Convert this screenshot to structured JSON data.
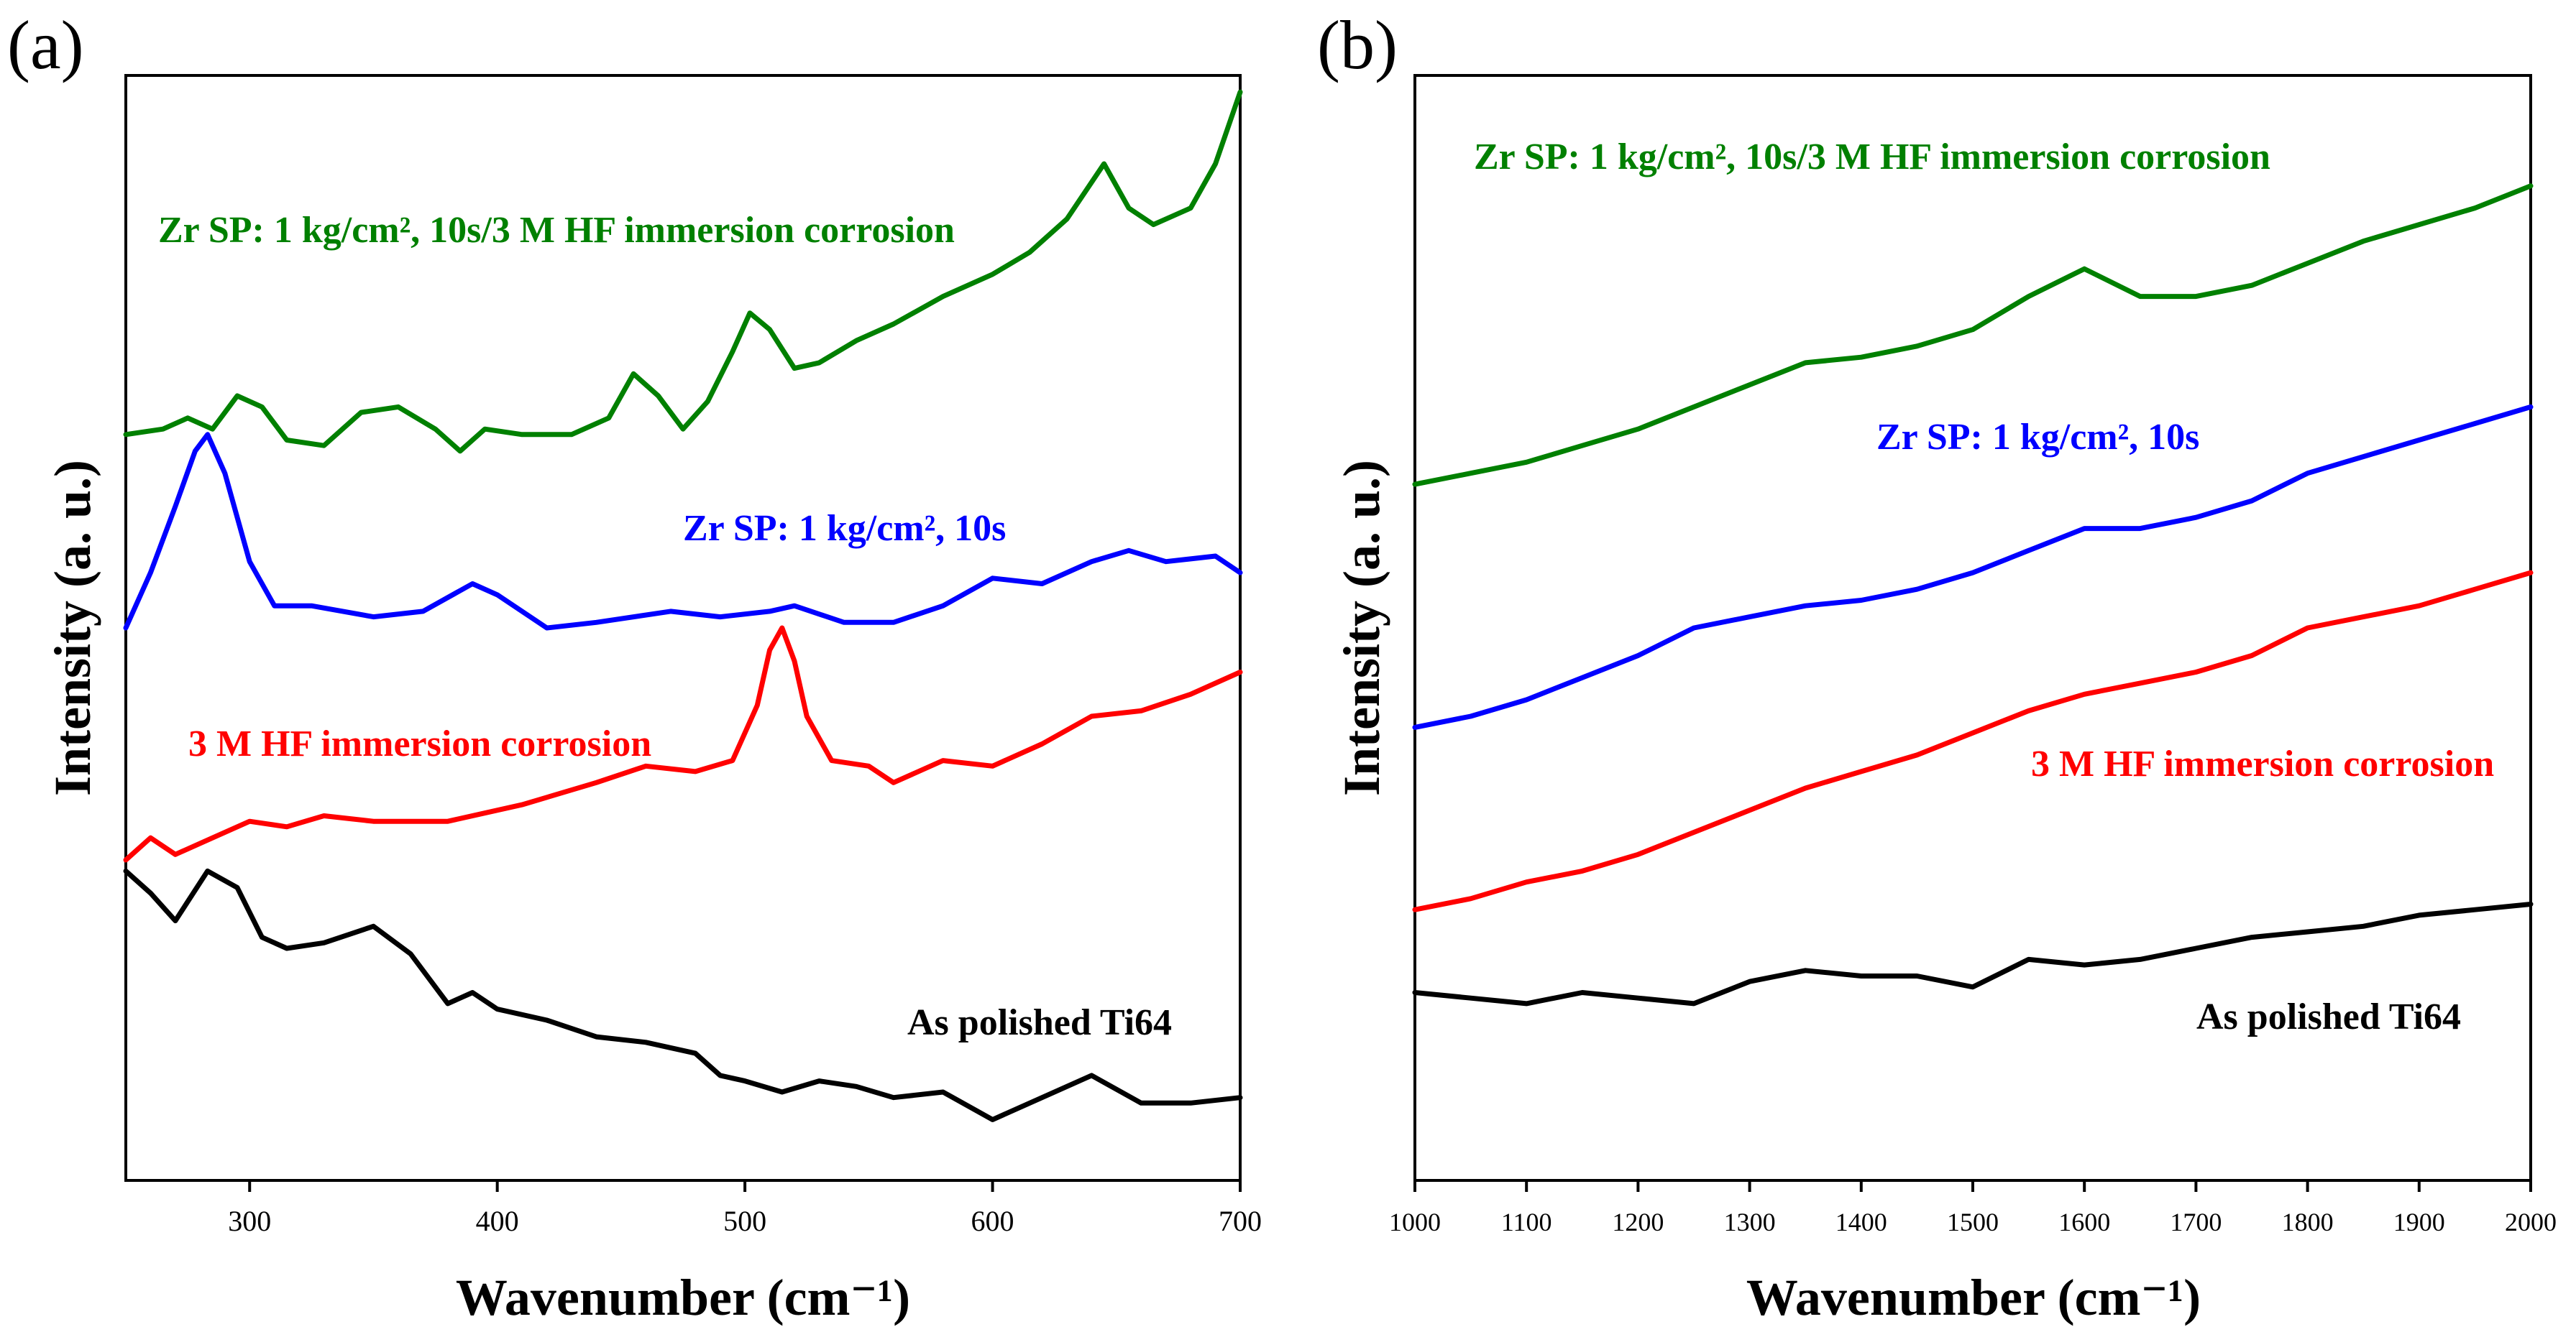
{
  "figure": {
    "panel_a": "(a)",
    "panel_b": "(b)"
  },
  "colors": {
    "black": "#000000",
    "red": "#ff0000",
    "blue": "#0000ff",
    "green": "#008000"
  },
  "chart_data": [
    {
      "id": "a",
      "type": "line",
      "panel_label": "(a)",
      "xlabel": "Wavenumber (cm⁻¹)",
      "ylabel": "Intensity (a. u.)",
      "xlim": [
        250,
        700
      ],
      "ylim": [
        0,
        100
      ],
      "xticks": [
        300,
        400,
        500,
        600,
        700
      ],
      "xtick_labels": [
        "300",
        "400",
        "500",
        "600",
        "700"
      ],
      "grid": false,
      "series": [
        {
          "name": "As polished Ti64",
          "color": "#000000",
          "x": [
            250,
            260,
            270,
            283,
            295,
            305,
            315,
            330,
            350,
            365,
            380,
            390,
            400,
            420,
            440,
            460,
            480,
            490,
            500,
            515,
            530,
            545,
            560,
            580,
            600,
            620,
            640,
            660,
            680,
            700
          ],
          "y": [
            28,
            26,
            23.5,
            28,
            26.5,
            22,
            21,
            21.5,
            23,
            20.5,
            16,
            17,
            15.5,
            14.5,
            13,
            12.5,
            11.5,
            9.5,
            9,
            8,
            9,
            8.5,
            7.5,
            8,
            5.5,
            7.5,
            9.5,
            7,
            7,
            7.5
          ]
        },
        {
          "name": "3 M HF immersion corrosion",
          "color": "#ff0000",
          "x": [
            250,
            260,
            270,
            285,
            300,
            315,
            330,
            350,
            380,
            410,
            440,
            460,
            480,
            495,
            505,
            510,
            515,
            520,
            525,
            535,
            550,
            560,
            580,
            600,
            620,
            640,
            660,
            680,
            700
          ],
          "y": [
            29,
            31,
            29.5,
            31,
            32.5,
            32,
            33,
            32.5,
            32.5,
            34,
            36,
            37.5,
            37,
            38,
            43,
            48,
            50,
            47,
            42,
            38,
            37.5,
            36,
            38,
            37.5,
            39.5,
            42,
            42.5,
            44,
            46
          ]
        },
        {
          "name": "Zr SP: 1 kg/cm², 10s",
          "color": "#0000ff",
          "x": [
            250,
            260,
            270,
            278,
            283,
            290,
            300,
            310,
            325,
            350,
            370,
            390,
            400,
            420,
            440,
            470,
            490,
            510,
            520,
            540,
            560,
            580,
            600,
            620,
            640,
            655,
            670,
            690,
            700
          ],
          "y": [
            50,
            55,
            61,
            66,
            67.5,
            64,
            56,
            52,
            52,
            51,
            51.5,
            54,
            53,
            50,
            50.5,
            51.5,
            51,
            51.5,
            52,
            50.5,
            50.5,
            52,
            54.5,
            54,
            56,
            57,
            56,
            56.5,
            55
          ]
        },
        {
          "name": "Zr SP: 1 kg/cm², 10s/3 M HF immersion corrosion",
          "color": "#008000",
          "x": [
            250,
            265,
            275,
            285,
            295,
            305,
            315,
            330,
            345,
            360,
            375,
            385,
            395,
            410,
            430,
            445,
            455,
            465,
            475,
            485,
            495,
            502,
            510,
            520,
            530,
            545,
            560,
            580,
            600,
            615,
            630,
            645,
            655,
            665,
            680,
            690,
            700
          ],
          "y": [
            67.5,
            68,
            69,
            68,
            71,
            70,
            67,
            66.5,
            69.5,
            70,
            68,
            66,
            68,
            67.5,
            67.5,
            69,
            73,
            71,
            68,
            70.5,
            75,
            78.5,
            77,
            73.5,
            74,
            76,
            77.5,
            80,
            82,
            84,
            87,
            92,
            88,
            86.5,
            88,
            92,
            98.5
          ]
        }
      ],
      "labels": [
        {
          "text": "Zr SP: 1 kg/cm², 10s/3 M HF immersion corrosion",
          "color": "#008000"
        },
        {
          "text": "Zr SP: 1 kg/cm², 10s",
          "color": "#0000ff"
        },
        {
          "text": "3 M HF immersion corrosion",
          "color": "#ff0000"
        },
        {
          "text": "As polished Ti64",
          "color": "#000000"
        }
      ]
    },
    {
      "id": "b",
      "type": "line",
      "panel_label": "(b)",
      "xlabel": "Wavenumber (cm⁻¹)",
      "ylabel": "Intensity (a. u.)",
      "xlim": [
        1000,
        2000
      ],
      "ylim": [
        0,
        100
      ],
      "xticks": [
        1000,
        1100,
        1200,
        1300,
        1400,
        1500,
        1600,
        1700,
        1800,
        1900,
        2000
      ],
      "xtick_labels": [
        "1000",
        "1100",
        "1200",
        "1300",
        "1400",
        "1500",
        "1600",
        "1700",
        "1800",
        "1900",
        "2000"
      ],
      "grid": false,
      "series": [
        {
          "name": "As polished Ti64",
          "color": "#000000",
          "x": [
            1000,
            1050,
            1100,
            1150,
            1200,
            1250,
            1300,
            1350,
            1400,
            1450,
            1500,
            1550,
            1600,
            1650,
            1700,
            1750,
            1800,
            1850,
            1900,
            1950,
            2000
          ],
          "y": [
            17,
            16.5,
            16,
            17,
            16.5,
            16,
            18,
            19,
            18.5,
            18.5,
            17.5,
            20,
            19.5,
            20,
            21,
            22,
            22.5,
            23,
            24,
            24.5,
            25
          ]
        },
        {
          "name": "3 M HF immersion corrosion",
          "color": "#ff0000",
          "x": [
            1000,
            1050,
            1100,
            1150,
            1200,
            1250,
            1300,
            1350,
            1400,
            1450,
            1500,
            1550,
            1600,
            1650,
            1700,
            1750,
            1800,
            1850,
            1900,
            1950,
            2000
          ],
          "y": [
            24.5,
            25.5,
            27,
            28,
            29.5,
            31.5,
            33.5,
            35.5,
            37,
            38.5,
            40.5,
            42.5,
            44,
            45,
            46,
            47.5,
            50,
            51,
            52,
            53.5,
            55
          ]
        },
        {
          "name": "Zr SP: 1 kg/cm², 10s",
          "color": "#0000ff",
          "x": [
            1000,
            1050,
            1100,
            1150,
            1200,
            1250,
            1300,
            1350,
            1400,
            1450,
            1500,
            1550,
            1600,
            1650,
            1700,
            1750,
            1800,
            1850,
            1900,
            1950,
            2000
          ],
          "y": [
            41,
            42,
            43.5,
            45.5,
            47.5,
            50,
            51,
            52,
            52.5,
            53.5,
            55,
            57,
            59,
            59,
            60,
            61.5,
            64,
            65.5,
            67,
            68.5,
            70
          ]
        },
        {
          "name": "Zr SP: 1 kg/cm², 10s/3 M HF immersion corrosion",
          "color": "#008000",
          "x": [
            1000,
            1050,
            1100,
            1150,
            1200,
            1250,
            1300,
            1350,
            1400,
            1450,
            1500,
            1550,
            1600,
            1650,
            1700,
            1750,
            1800,
            1850,
            1900,
            1950,
            2000
          ],
          "y": [
            63,
            64,
            65,
            66.5,
            68,
            70,
            72,
            74,
            74.5,
            75.5,
            77,
            80,
            82.5,
            80,
            80,
            81,
            83,
            85,
            86.5,
            88,
            90
          ]
        }
      ],
      "labels": [
        {
          "text": "Zr SP: 1 kg/cm², 10s/3 M HF immersion corrosion",
          "color": "#008000"
        },
        {
          "text": "Zr SP: 1 kg/cm², 10s",
          "color": "#0000ff"
        },
        {
          "text": "3 M HF immersion corrosion",
          "color": "#ff0000"
        },
        {
          "text": "As polished Ti64",
          "color": "#000000"
        }
      ]
    }
  ]
}
